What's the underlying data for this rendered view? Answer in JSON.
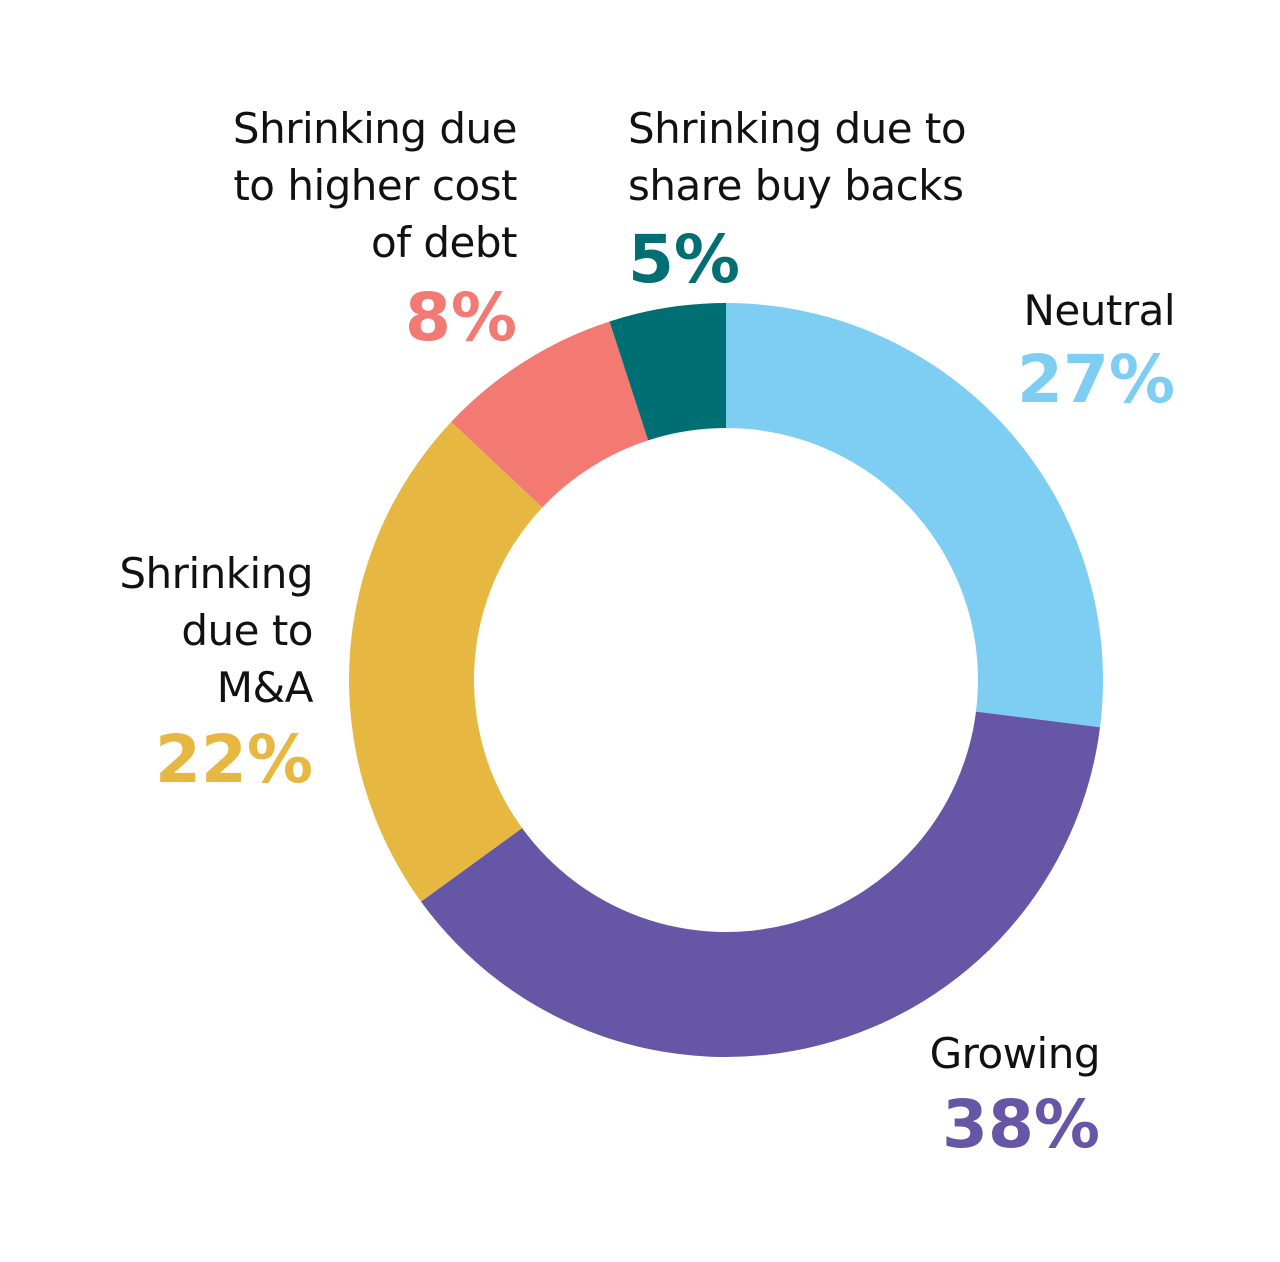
{
  "chart_data": {
    "type": "donut",
    "categories": [
      "Neutral",
      "Growing",
      "Shrinking\ndue to\nM&A",
      "Shrinking due\nto higher cost\nof debt",
      "Shrinking due to\nshare buy backs"
    ],
    "values": [
      27,
      38,
      22,
      8,
      5
    ],
    "value_labels": [
      "27%",
      "38%",
      "22%",
      "8%",
      "5%"
    ],
    "colors": [
      "#7ecef3",
      "#6657a6",
      "#e6b842",
      "#f27a73",
      "#006f73"
    ]
  }
}
